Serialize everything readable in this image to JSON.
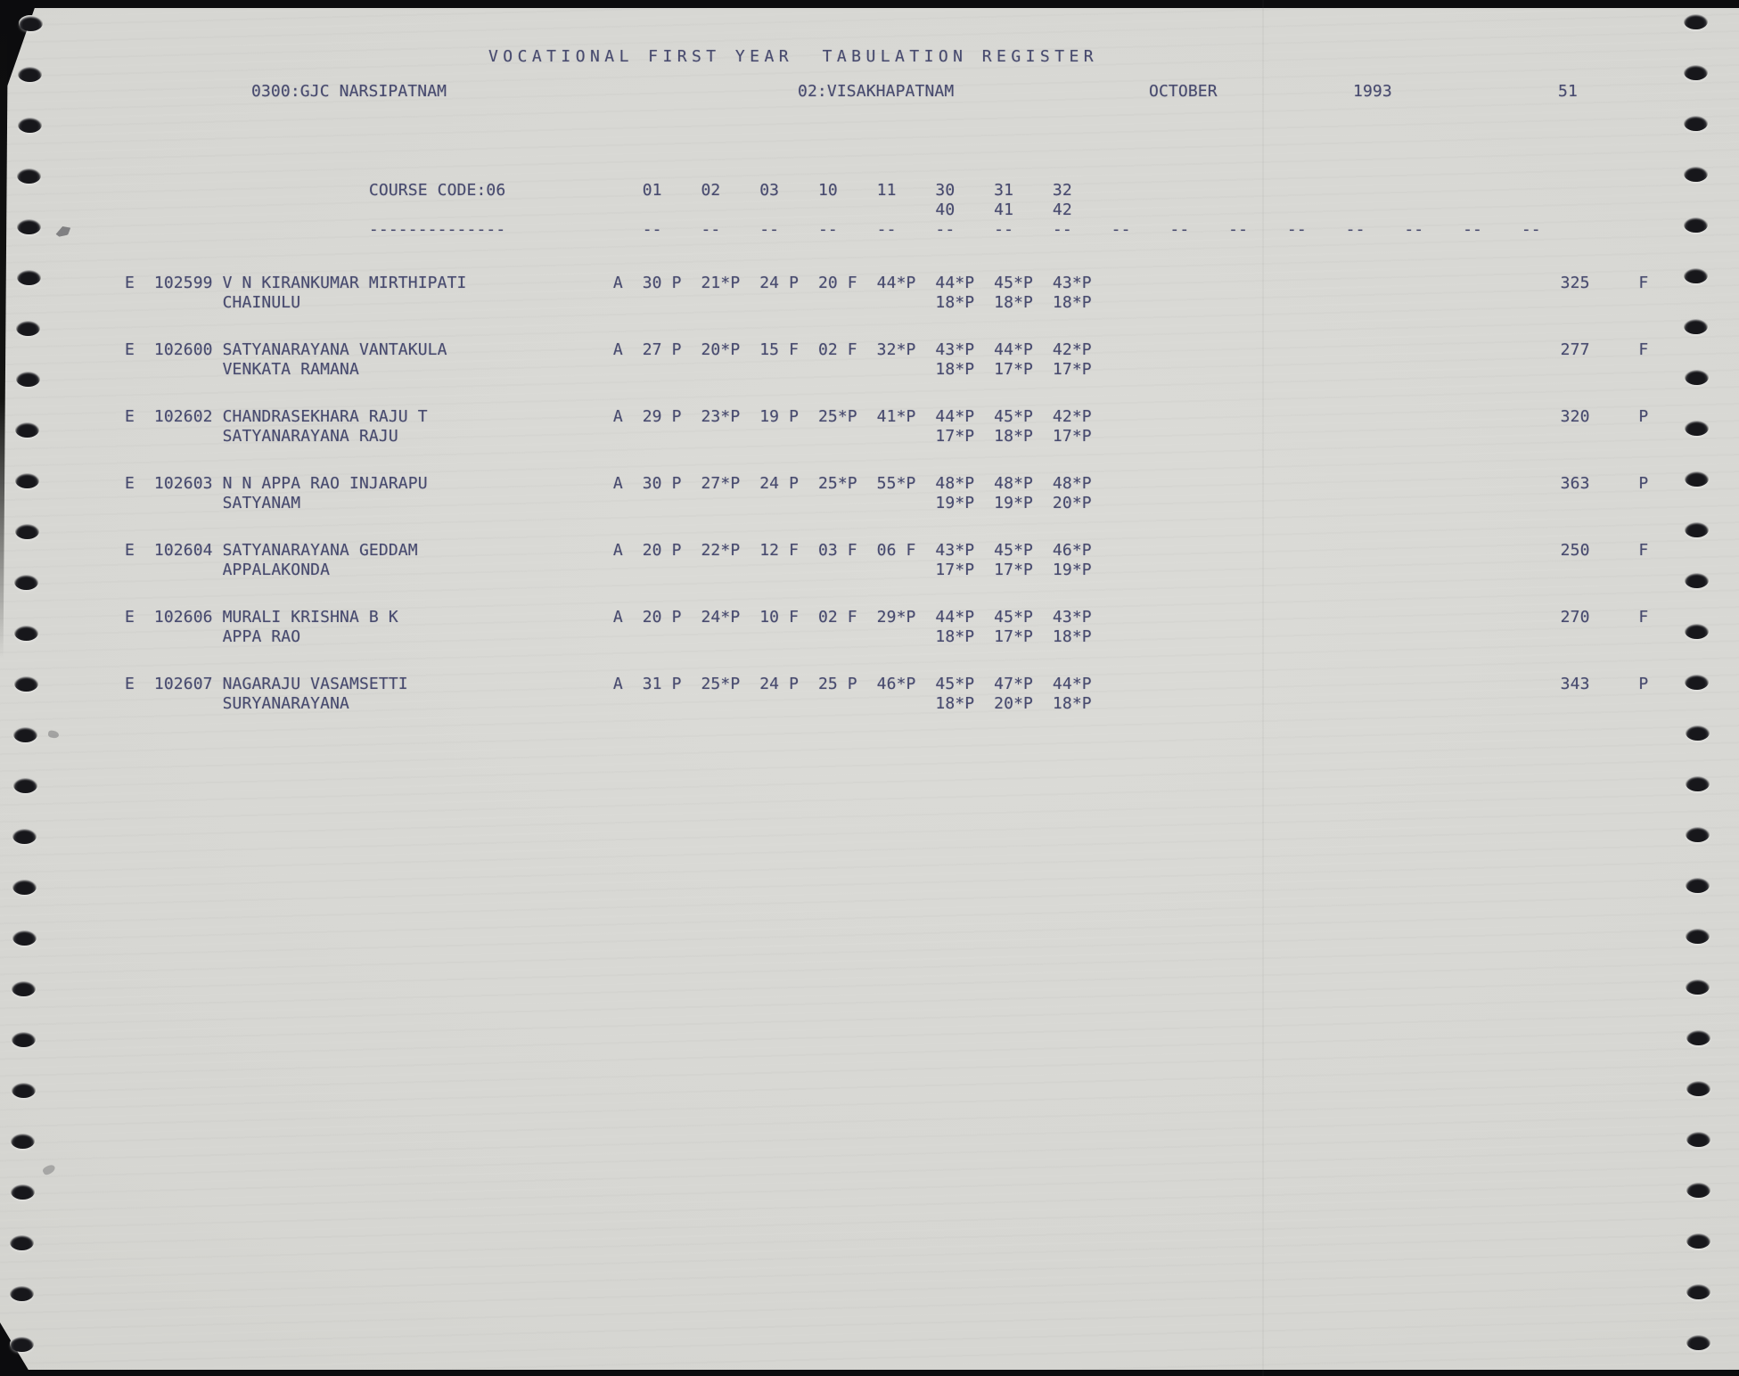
{
  "report": {
    "title": "VOCATIONAL FIRST YEAR  TABULATION REGISTER",
    "college": "0300:GJC NARSIPATNAM",
    "district": "02:VISAKHAPATNAM",
    "month": "OCTOBER",
    "year": "1993",
    "page_number": "51"
  },
  "course": {
    "label": "COURSE CODE:06",
    "subject_codes_row1": [
      "01",
      "02",
      "03",
      "10",
      "11",
      "30",
      "31",
      "32"
    ],
    "subject_codes_row2": [
      "40",
      "41",
      "42"
    ],
    "underline": "--------------",
    "column_dash": "--",
    "dash_column_count": 16
  },
  "students": [
    {
      "serial": "E",
      "regno": "102599",
      "name_line1": "V N KIRANKUMAR MIRTHIPATI",
      "name_line2": "CHAINULU",
      "attendance": "A",
      "marks_row1": [
        "30 P",
        "21*P",
        "24 P",
        "20 F",
        "44*P",
        "44*P",
        "45*P",
        "43*P"
      ],
      "marks_row2": [
        "18*P",
        "18*P",
        "18*P"
      ],
      "total": "325",
      "result": "F"
    },
    {
      "serial": "E",
      "regno": "102600",
      "name_line1": "SATYANARAYANA VANTAKULA",
      "name_line2": "VENKATA RAMANA",
      "attendance": "A",
      "marks_row1": [
        "27 P",
        "20*P",
        "15 F",
        "02 F",
        "32*P",
        "43*P",
        "44*P",
        "42*P"
      ],
      "marks_row2": [
        "18*P",
        "17*P",
        "17*P"
      ],
      "total": "277",
      "result": "F"
    },
    {
      "serial": "E",
      "regno": "102602",
      "name_line1": "CHANDRASEKHARA RAJU T",
      "name_line2": "SATYANARAYANA RAJU",
      "attendance": "A",
      "marks_row1": [
        "29 P",
        "23*P",
        "19 P",
        "25*P",
        "41*P",
        "44*P",
        "45*P",
        "42*P"
      ],
      "marks_row2": [
        "17*P",
        "18*P",
        "17*P"
      ],
      "total": "320",
      "result": "P"
    },
    {
      "serial": "E",
      "regno": "102603",
      "name_line1": "N N APPA RAO INJARAPU",
      "name_line2": "SATYANAM",
      "attendance": "A",
      "marks_row1": [
        "30 P",
        "27*P",
        "24 P",
        "25*P",
        "55*P",
        "48*P",
        "48*P",
        "48*P"
      ],
      "marks_row2": [
        "19*P",
        "19*P",
        "20*P"
      ],
      "total": "363",
      "result": "P"
    },
    {
      "serial": "E",
      "regno": "102604",
      "name_line1": "SATYANARAYANA GEDDAM",
      "name_line2": "APPALAKONDA",
      "attendance": "A",
      "marks_row1": [
        "20 P",
        "22*P",
        "12 F",
        "03 F",
        "06 F",
        "43*P",
        "45*P",
        "46*P"
      ],
      "marks_row2": [
        "17*P",
        "17*P",
        "19*P"
      ],
      "total": "250",
      "result": "F"
    },
    {
      "serial": "E",
      "regno": "102606",
      "name_line1": "MURALI KRISHNA B K",
      "name_line2": "APPA RAO",
      "attendance": "A",
      "marks_row1": [
        "20 P",
        "24*P",
        "10 F",
        "02 F",
        "29*P",
        "44*P",
        "45*P",
        "43*P"
      ],
      "marks_row2": [
        "18*P",
        "17*P",
        "18*P"
      ],
      "total": "270",
      "result": "F"
    },
    {
      "serial": "E",
      "regno": "102607",
      "name_line1": "NAGARAJU VASAMSETTI",
      "name_line2": "SURYANARAYANA",
      "attendance": "A",
      "marks_row1": [
        "31 P",
        "25*P",
        "24 P",
        "25 P",
        "46*P",
        "45*P",
        "47*P",
        "44*P"
      ],
      "marks_row2": [
        "18*P",
        "20*P",
        "18*P"
      ],
      "total": "343",
      "result": "P"
    }
  ],
  "ink_color": "#474a6e",
  "paper_color": "#d6d6d2"
}
